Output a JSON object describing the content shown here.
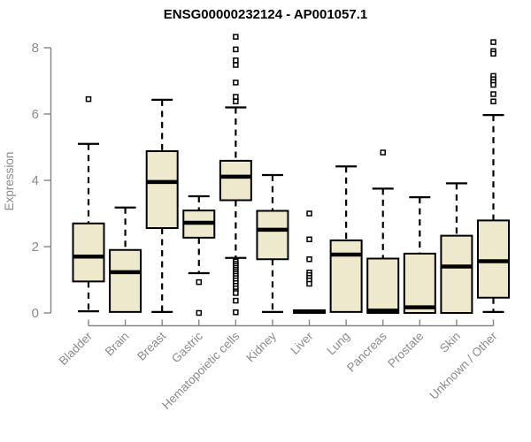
{
  "chart_data": {
    "type": "boxplot",
    "title": "ENSG00000232124 - AP001057.1",
    "ylabel": "Expression",
    "xlabel": "",
    "ylim": [
      0,
      8
    ],
    "yticks": [
      0,
      2,
      4,
      6,
      8
    ],
    "grid": false,
    "legend": "none",
    "colors": {
      "box_fill": "#EEE8CD",
      "box_stroke": "#000000",
      "median": "#000000",
      "whisker": "#000000",
      "outlier_fill": "#ffffff",
      "outlier_stroke": "#000000",
      "axis": "#858585",
      "tick_label": "#8a8a8a",
      "title": "#000000",
      "background": "#ffffff"
    },
    "categories": [
      "Bladder",
      "Brain",
      "Breast",
      "Gastric",
      "Hematopoietic cells",
      "Kidney",
      "Liver",
      "Lung",
      "Pancreas",
      "Prostate",
      "Skin",
      "Unknown / Other"
    ],
    "boxes": [
      {
        "category": "Bladder",
        "whisker_low": 0.05,
        "q1": 0.95,
        "median": 1.7,
        "q3": 2.7,
        "whisker_high": 5.1,
        "outliers": [
          6.45
        ]
      },
      {
        "category": "Brain",
        "whisker_low": 0.03,
        "q1": 0.03,
        "median": 1.23,
        "q3": 1.9,
        "whisker_high": 3.18,
        "outliers": []
      },
      {
        "category": "Breast",
        "whisker_low": 0.03,
        "q1": 2.56,
        "median": 3.95,
        "q3": 4.88,
        "whisker_high": 6.43,
        "outliers": []
      },
      {
        "category": "Gastric",
        "whisker_low": 1.2,
        "q1": 2.27,
        "median": 2.72,
        "q3": 3.09,
        "whisker_high": 3.52,
        "outliers": [
          0.93,
          0.0
        ]
      },
      {
        "category": "Hematopoietic cells",
        "whisker_low": 1.66,
        "q1": 3.4,
        "median": 4.11,
        "q3": 4.59,
        "whisker_high": 6.2,
        "outliers": [
          8.33,
          7.95,
          7.62,
          7.48,
          6.95,
          6.52,
          6.38,
          1.55,
          1.48,
          1.42,
          1.36,
          1.3,
          1.24,
          1.18,
          1.12,
          1.05,
          0.98,
          0.9,
          0.82,
          0.74,
          0.65,
          0.6,
          0.37,
          0.02
        ]
      },
      {
        "category": "Kidney",
        "whisker_low": 0.03,
        "q1": 1.62,
        "median": 2.51,
        "q3": 3.08,
        "whisker_high": 4.16,
        "outliers": []
      },
      {
        "category": "Liver",
        "whisker_low": 0.0,
        "q1": 0.0,
        "median": 0.04,
        "q3": 0.08,
        "whisker_high": 0.08,
        "outliers": [
          3.0,
          2.22,
          1.62,
          1.22,
          1.14,
          1.06,
          0.98,
          0.88
        ]
      },
      {
        "category": "Lung",
        "whisker_low": 0.03,
        "q1": 0.03,
        "median": 1.76,
        "q3": 2.19,
        "whisker_high": 4.42,
        "outliers": []
      },
      {
        "category": "Pancreas",
        "whisker_low": 0.0,
        "q1": 0.0,
        "median": 0.07,
        "q3": 1.64,
        "whisker_high": 3.75,
        "outliers": [
          4.84
        ]
      },
      {
        "category": "Prostate",
        "whisker_low": 0.0,
        "q1": 0.0,
        "median": 0.17,
        "q3": 1.79,
        "whisker_high": 3.49,
        "outliers": []
      },
      {
        "category": "Skin",
        "whisker_low": 0.0,
        "q1": 0.0,
        "median": 1.4,
        "q3": 2.33,
        "whisker_high": 3.91,
        "outliers": []
      },
      {
        "category": "Unknown / Other",
        "whisker_low": 0.03,
        "q1": 0.46,
        "median": 1.56,
        "q3": 2.79,
        "whisker_high": 5.97,
        "outliers": [
          8.17,
          7.9,
          7.82,
          7.15,
          7.05,
          6.97,
          6.88,
          6.6,
          6.38
        ]
      }
    ]
  }
}
